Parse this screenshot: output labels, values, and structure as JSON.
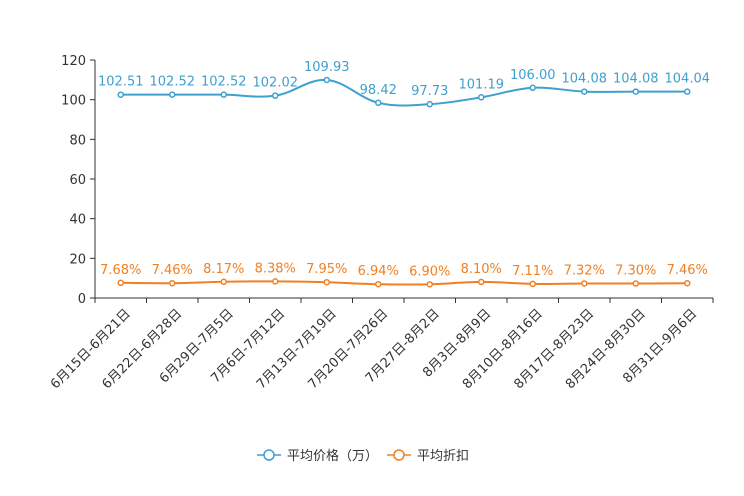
{
  "chart_data": {
    "type": "line",
    "title": "",
    "xlabel": "",
    "ylabel": "",
    "ylim": [
      0,
      120
    ],
    "yticks": [
      0,
      20,
      40,
      60,
      80,
      100,
      120
    ],
    "grid": false,
    "legend_position": "bottom-center",
    "categories": [
      "6月15日-6月21日",
      "6月22日-6月28日",
      "6月29日-7月5日",
      "7月6日-7月12日",
      "7月13日-7月19日",
      "7月20日-7月26日",
      "7月27日-8月2日",
      "8月3日-8月9日",
      "8月10日-8月16日",
      "8月17日-8月23日",
      "8月24日-8月30日",
      "8月31日-9月6日"
    ],
    "series": [
      {
        "name": "平均价格（万）",
        "color": "#3fa0cf",
        "values": [
          102.51,
          102.52,
          102.52,
          102.02,
          109.93,
          98.42,
          97.73,
          101.19,
          106.0,
          104.08,
          104.08,
          104.04
        ],
        "labels": [
          "102.51",
          "102.52",
          "102.52",
          "102.02",
          "109.93",
          "98.42",
          "97.73",
          "101.19",
          "106.00",
          "104.08",
          "104.08",
          "104.04"
        ]
      },
      {
        "name": "平均折扣",
        "color": "#f28022",
        "values": [
          7.68,
          7.46,
          8.17,
          8.38,
          7.95,
          6.94,
          6.9,
          8.1,
          7.11,
          7.32,
          7.3,
          7.46
        ],
        "labels": [
          "7.68%",
          "7.46%",
          "8.17%",
          "8.38%",
          "7.95%",
          "6.94%",
          "6.90%",
          "8.10%",
          "7.11%",
          "7.32%",
          "7.30%",
          "7.46%"
        ]
      }
    ]
  }
}
